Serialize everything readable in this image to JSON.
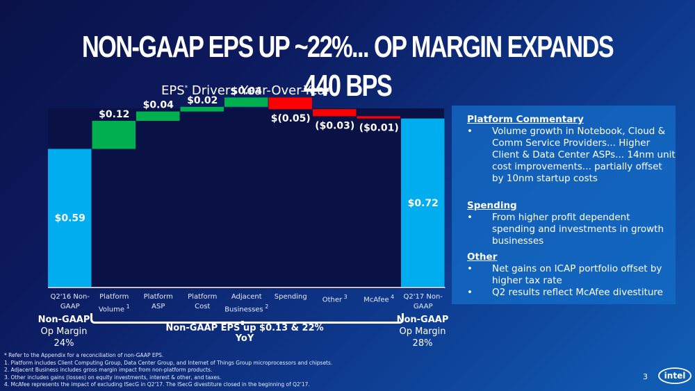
{
  "slide": {
    "title": "NON-GAAP EPS UP ~22%... OP MARGIN EXPANDS  440 BPS",
    "page_number": "3",
    "logo": "intel"
  },
  "chart_data": {
    "type": "waterfall",
    "title": "EPS",
    "title_sup": "*",
    "title_rest": " Drivers Year-Over-Year",
    "categories": [
      "Q2'16 Non-GAAP",
      "Platform Volume",
      "Platform ASP",
      "Platform Cost",
      "Adjacent Businesses",
      "Spending",
      "Other",
      "McAfee",
      "Q2'17 Non-GAAP"
    ],
    "category_lines": [
      [
        "Q2'16 Non-",
        "GAAP",
        ""
      ],
      [
        "Platform",
        "Volume",
        "1"
      ],
      [
        "Platform",
        "ASP",
        ""
      ],
      [
        "Platform",
        "Cost",
        ""
      ],
      [
        "Adjacent",
        "Businesses",
        "2"
      ],
      [
        "Spending",
        "",
        ""
      ],
      [
        "Other",
        "",
        "3"
      ],
      [
        "McAfee",
        "",
        "4"
      ],
      [
        "Q2'17 Non-",
        "GAAP",
        ""
      ]
    ],
    "values": [
      0.59,
      0.12,
      0.04,
      0.02,
      0.04,
      -0.05,
      -0.03,
      -0.01,
      0.72
    ],
    "kinds": [
      "total",
      "delta",
      "delta",
      "delta",
      "delta",
      "delta",
      "delta",
      "delta",
      "total"
    ],
    "data_labels": [
      "$0.59",
      "$0.12",
      "$0.04",
      "$0.02",
      "$0.04",
      "$(0.05)",
      "($0.03)",
      "($0.01)",
      "$0.72"
    ],
    "colors": {
      "total": "#00aeef",
      "increase": "#00b050",
      "decrease": "#ff0000"
    },
    "ylim": [
      0,
      0.82
    ],
    "grid": false,
    "legend": "none",
    "bracket_label": "Non-GAAP EPS up $0.13 & 22% YoY"
  },
  "margins": {
    "left": {
      "heading": "Non-GAAP",
      "line2": "Op Margin",
      "value": "24%"
    },
    "right": {
      "heading": "Non-GAAP",
      "line2": "Op Margin",
      "value": "28%"
    }
  },
  "commentary": {
    "sections": [
      {
        "heading": "Platform Commentary",
        "bullets": [
          "Volume growth in Notebook,  Cloud & Comm Service Providers... Higher Client & Data Center ASPs... 14nm unit cost improvements... partially offset by 10nm startup costs"
        ]
      },
      {
        "heading": "Spending",
        "bullets": [
          "From higher profit dependent spending and investments in growth businesses"
        ]
      },
      {
        "heading": "Other",
        "bullets": [
          "Net gains on ICAP portfolio offset by higher tax rate",
          "Q2 results reflect McAfee divestiture"
        ]
      }
    ]
  },
  "footnotes": [
    "* Refer to the Appendix for a reconciliation of non-GAAP EPS.",
    "1. Platform includes Client Computing Group, Data Center Group, and Internet of Things Group microprocessors and chipsets.",
    "2. Adjacent Business includes gross margin impact from non-platform products.",
    "3. Other includes gains (losses) on equity investments, interest & other, and taxes.",
    "4. McAfee represents the impact of excluding ISecG in Q2'17. The ISecG divestiture closed in the beginning of Q2'17."
  ]
}
